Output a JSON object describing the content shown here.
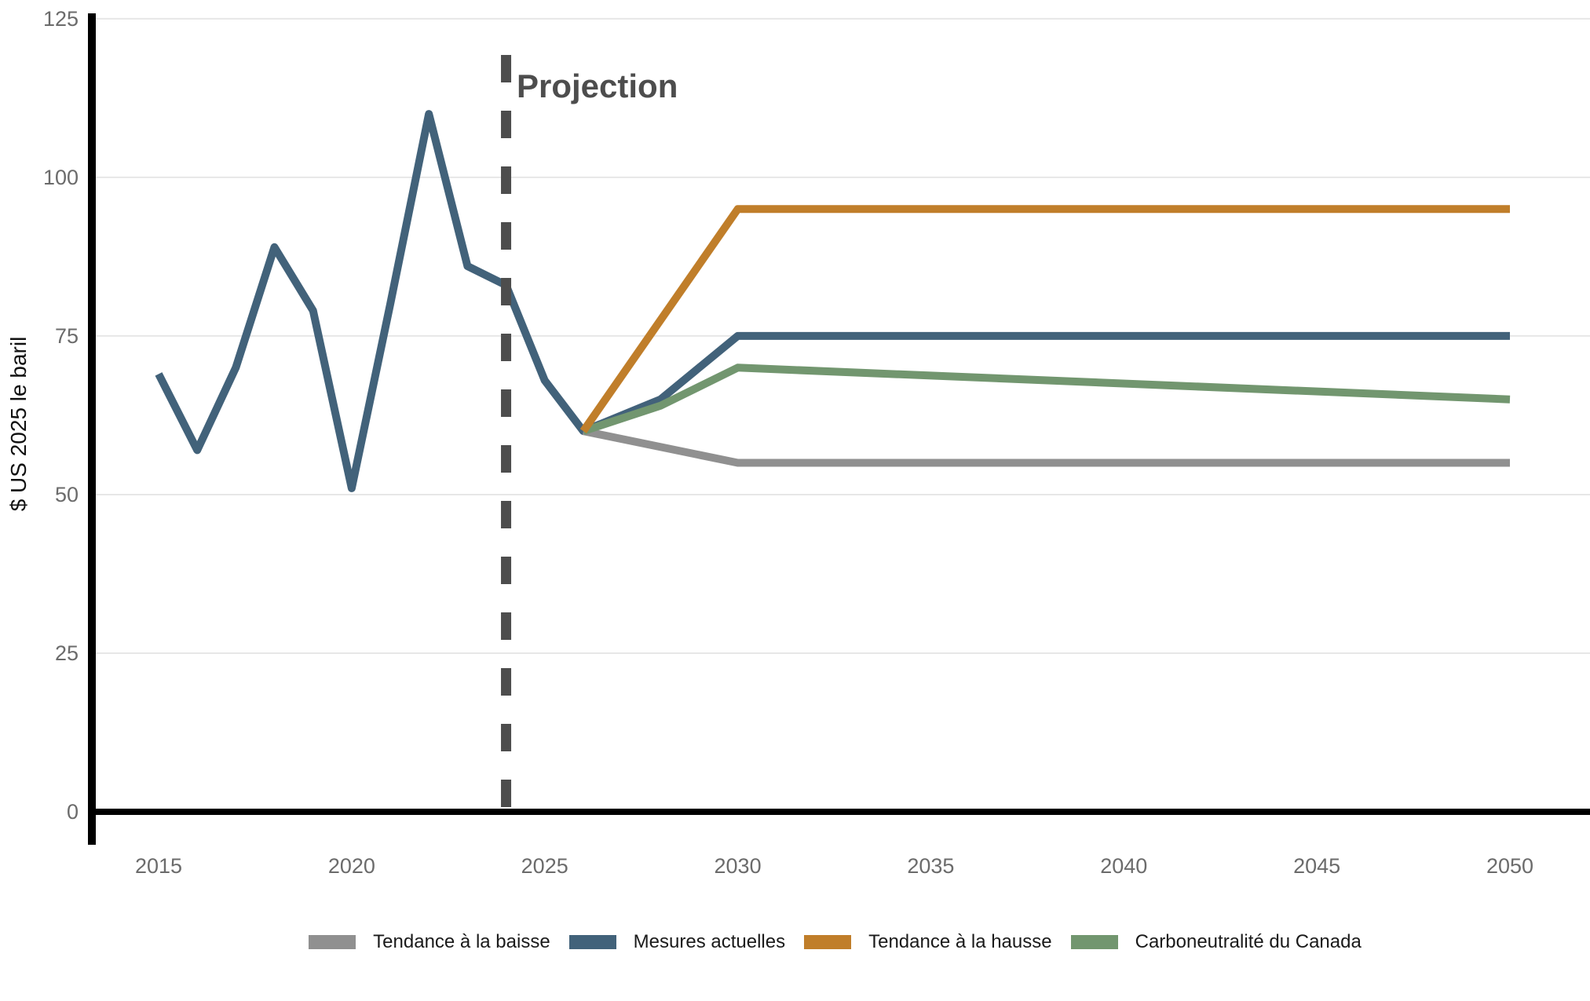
{
  "chart_data": {
    "type": "line",
    "title": "",
    "xlabel": "",
    "ylabel": "$ US 2025 le baril",
    "ylim": [
      0,
      125
    ],
    "xlim": [
      2013,
      2052
    ],
    "yticks": [
      0,
      25,
      50,
      75,
      100,
      125
    ],
    "xticks": [
      2015,
      2020,
      2025,
      2030,
      2035,
      2040,
      2045,
      2050
    ],
    "grid": true,
    "legend_position": "bottom",
    "annotation": {
      "label": "Projection",
      "year": 2024
    },
    "series": [
      {
        "name": "Mesures actuelles",
        "color": "#42627a",
        "points": [
          [
            2015,
            69
          ],
          [
            2016,
            57
          ],
          [
            2017,
            70
          ],
          [
            2018,
            89
          ],
          [
            2019,
            79
          ],
          [
            2020,
            51
          ],
          [
            2021,
            80
          ],
          [
            2022,
            110
          ],
          [
            2023,
            86
          ],
          [
            2024,
            83
          ],
          [
            2025,
            68
          ],
          [
            2026,
            60
          ],
          [
            2028,
            65
          ],
          [
            2030,
            75
          ],
          [
            2050,
            75
          ]
        ]
      },
      {
        "name": "Tendance à la baisse",
        "color": "#909090",
        "points": [
          [
            2026,
            60
          ],
          [
            2030,
            55
          ],
          [
            2050,
            55
          ]
        ]
      },
      {
        "name": "Carboneutralité du Canada",
        "color": "#72966f",
        "points": [
          [
            2026,
            60
          ],
          [
            2028,
            64
          ],
          [
            2030,
            70
          ],
          [
            2050,
            65
          ]
        ]
      },
      {
        "name": "Tendance à la hausse",
        "color": "#c07e2a",
        "points": [
          [
            2026,
            60
          ],
          [
            2030,
            95
          ],
          [
            2050,
            95
          ]
        ]
      }
    ],
    "legend": [
      {
        "label": "Tendance à la baisse",
        "color": "#909090"
      },
      {
        "label": "Mesures actuelles",
        "color": "#42627a"
      },
      {
        "label": "Tendance à la hausse",
        "color": "#c07e2a"
      },
      {
        "label": "Carboneutralité du Canada",
        "color": "#72966f"
      }
    ],
    "style": {
      "axis_color": "#000000",
      "grid_color": "#e7e7e7",
      "tick_label_color": "#6b6b6b",
      "projection_line_color": "#4d4d4d",
      "background": "#ffffff"
    }
  }
}
